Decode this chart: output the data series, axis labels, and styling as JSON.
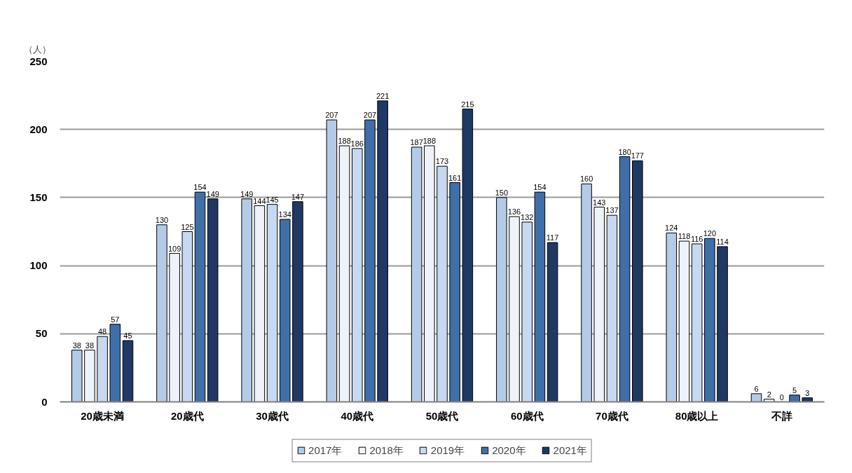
{
  "chart_data": {
    "type": "bar",
    "ylabel": "（人）",
    "categories": [
      "20歳未満",
      "20歳代",
      "30歳代",
      "40歳代",
      "50歳代",
      "60歳代",
      "70歳代",
      "80歳以上",
      "不詳"
    ],
    "series": [
      {
        "name": "2017年",
        "color": "#b4cbe8",
        "values": [
          38,
          130,
          149,
          207,
          187,
          150,
          160,
          124,
          6
        ]
      },
      {
        "name": "2018年",
        "color": "#eef3fa",
        "values": [
          38,
          109,
          144,
          188,
          188,
          136,
          143,
          118,
          2
        ]
      },
      {
        "name": "2019年",
        "color": "#c6d9f1",
        "values": [
          48,
          125,
          145,
          186,
          173,
          132,
          137,
          116,
          0
        ]
      },
      {
        "name": "2020年",
        "color": "#3f6fa8",
        "values": [
          57,
          154,
          134,
          207,
          161,
          154,
          180,
          120,
          5
        ]
      },
      {
        "name": "2021年",
        "color": "#1f3864",
        "values": [
          45,
          149,
          147,
          221,
          215,
          117,
          177,
          114,
          3
        ]
      }
    ],
    "ylim": [
      0,
      250
    ],
    "yticks": [
      0,
      50,
      100,
      150,
      200,
      250
    ],
    "grid": "y",
    "legend": "bottom",
    "data_labels": true
  }
}
